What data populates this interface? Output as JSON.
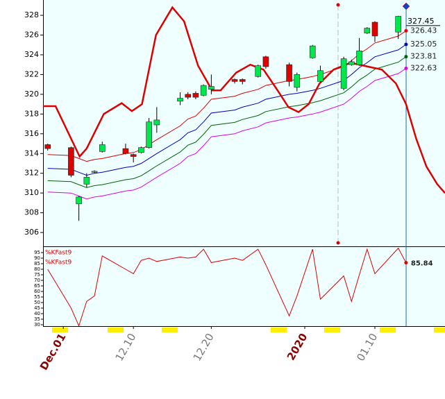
{
  "chart_data": [
    {
      "type": "candlestick",
      "x": [
        -2,
        1,
        2,
        3,
        4,
        5,
        8,
        9,
        10,
        11,
        12,
        15,
        16,
        17,
        18,
        19,
        22,
        23,
        25,
        26,
        29,
        30,
        32,
        33,
        36,
        37,
        38,
        39,
        40,
        43
      ],
      "open": [
        314.9,
        314.6,
        308.9,
        310.9,
        312.1,
        314.2,
        314.5,
        313.9,
        314.1,
        314.6,
        316.9,
        319.3,
        320.0,
        320.1,
        319.9,
        320.5,
        321.5,
        321.5,
        321.8,
        323.8,
        323.0,
        320.7,
        323.7,
        321.3,
        320.6,
        323.0,
        323.0,
        326.2,
        327.3,
        326.3
      ],
      "high": [
        315.0,
        314.7,
        309.7,
        312.0,
        312.3,
        315.2,
        315.0,
        314.0,
        314.7,
        317.6,
        318.7,
        320.2,
        320.2,
        320.3,
        321.0,
        322.0,
        321.6,
        321.6,
        323.0,
        323.9,
        323.2,
        322.2,
        325.0,
        322.9,
        323.8,
        323.5,
        325.7,
        326.8,
        327.4,
        327.95
      ],
      "low": [
        314.3,
        311.6,
        307.2,
        310.6,
        312.0,
        314.1,
        313.9,
        313.1,
        314.0,
        314.5,
        316.1,
        318.9,
        319.5,
        319.5,
        319.8,
        320.0,
        321.1,
        321.0,
        321.7,
        322.6,
        320.8,
        320.3,
        323.6,
        321.2,
        320.4,
        322.9,
        322.9,
        326.1,
        325.3,
        325.6
      ],
      "close": [
        314.5,
        311.8,
        309.6,
        311.6,
        312.2,
        314.9,
        314.0,
        313.7,
        314.6,
        317.2,
        317.4,
        319.6,
        319.7,
        319.7,
        320.9,
        320.8,
        321.3,
        321.3,
        322.9,
        322.8,
        321.3,
        322.0,
        324.9,
        322.4,
        323.6,
        323.3,
        324.4,
        326.7,
        325.9,
        327.9
      ],
      "up_color": "#00e64d",
      "down_color": "#e00000",
      "series": [
        {
          "color": "#e00000",
          "x": [
            -2,
            1,
            2,
            3,
            4,
            5,
            8,
            9,
            10,
            11,
            12,
            15,
            16,
            17,
            18,
            19,
            22,
            23,
            25,
            26,
            29,
            30,
            32,
            33,
            36,
            37,
            38,
            39,
            40,
            43,
            44
          ],
          "values": [
            313.9,
            313.8,
            313.5,
            313.2,
            313.4,
            313.5,
            314.0,
            314.1,
            314.4,
            314.9,
            315.4,
            316.8,
            317.5,
            317.8,
            318.6,
            319.5,
            319.8,
            320.1,
            320.5,
            320.9,
            321.4,
            321.5,
            321.8,
            322.0,
            322.8,
            323.4,
            324.1,
            324.6,
            325.2,
            325.9,
            326.43
          ]
        },
        {
          "color": "#0000c0",
          "x": [
            -2,
            1,
            2,
            3,
            4,
            5,
            8,
            9,
            10,
            11,
            12,
            15,
            16,
            17,
            18,
            19,
            22,
            23,
            25,
            26,
            29,
            30,
            32,
            33,
            36,
            37,
            38,
            39,
            40,
            43,
            44
          ],
          "values": [
            312.5,
            312.4,
            312.1,
            311.8,
            312.0,
            312.1,
            312.6,
            312.7,
            313.0,
            313.5,
            314.0,
            315.4,
            316.1,
            316.4,
            317.2,
            318.1,
            318.4,
            318.7,
            319.1,
            319.5,
            320.0,
            320.1,
            320.4,
            320.6,
            321.4,
            322.0,
            322.7,
            323.2,
            323.8,
            324.5,
            325.05
          ]
        },
        {
          "color": "#006400",
          "x": [
            -2,
            1,
            2,
            3,
            4,
            5,
            8,
            9,
            10,
            11,
            12,
            15,
            16,
            17,
            18,
            19,
            22,
            23,
            25,
            26,
            29,
            30,
            32,
            33,
            36,
            37,
            38,
            39,
            40,
            43,
            44
          ],
          "values": [
            311.25,
            311.15,
            310.85,
            310.55,
            310.75,
            310.85,
            311.35,
            311.45,
            311.75,
            312.25,
            312.75,
            314.15,
            314.85,
            315.15,
            315.95,
            316.85,
            317.15,
            317.45,
            317.85,
            318.25,
            318.75,
            318.85,
            319.15,
            319.35,
            320.15,
            320.75,
            321.45,
            321.95,
            322.55,
            323.25,
            323.81
          ]
        },
        {
          "color": "#e000e0",
          "x": [
            -2,
            1,
            2,
            3,
            4,
            5,
            8,
            9,
            10,
            11,
            12,
            15,
            16,
            17,
            18,
            19,
            22,
            23,
            25,
            26,
            29,
            30,
            32,
            33,
            36,
            37,
            38,
            39,
            40,
            43,
            44
          ],
          "values": [
            310.1,
            310.0,
            309.7,
            309.4,
            309.6,
            309.7,
            310.2,
            310.3,
            310.6,
            311.1,
            311.6,
            313.0,
            313.7,
            314.0,
            314.8,
            315.7,
            316.0,
            316.3,
            316.7,
            317.1,
            317.6,
            317.7,
            318.0,
            318.2,
            319.0,
            319.6,
            320.3,
            320.8,
            321.4,
            322.1,
            322.63
          ]
        },
        {
          "color": "#dd0000",
          "width": 2.5,
          "x": [
            -2.6,
            -1.0,
            2.1,
            3.0,
            5.2,
            7.5,
            8.8,
            10.1,
            11.9,
            14.0,
            15.5,
            17.3,
            19.1,
            20.2,
            22.2,
            24.0,
            25.7,
            27.5,
            28.9,
            30.2,
            31.5,
            32.9,
            34.7,
            36.9,
            39.1,
            40.9,
            42.7,
            44.0,
            45.3,
            46.6,
            48.0,
            49.0
          ],
          "values": [
            318.8,
            318.8,
            313.7,
            314.5,
            318.0,
            319.1,
            318.3,
            319.0,
            326.0,
            328.8,
            327.4,
            322.9,
            320.4,
            320.4,
            322.2,
            323.0,
            322.5,
            320.4,
            318.7,
            318.2,
            319.0,
            321.1,
            322.5,
            323.2,
            322.8,
            322.5,
            321.1,
            319.0,
            315.5,
            312.7,
            310.9,
            310.0
          ]
        }
      ],
      "last_price": 327.45,
      "xlim": [
        -2.6,
        49
      ],
      "xticks": [
        {
          "value": 0,
          "label": "Dec.01"
        },
        {
          "value": 9,
          "label": "12.10"
        },
        {
          "value": 19,
          "label": "12.20"
        },
        {
          "value": 31,
          "label": "2020"
        },
        {
          "value": 40,
          "label": "01.10"
        }
      ],
      "xtick_colors": [
        "#8b0000",
        "#777777",
        "#777777",
        "#8b0000",
        "#777777"
      ],
      "ylim": [
        304.6,
        329.55
      ],
      "yticks": [
        306,
        308,
        310,
        312,
        314,
        316,
        318,
        320,
        322,
        324,
        326,
        328
      ]
    },
    {
      "type": "line",
      "title": "%KFast9",
      "series": [
        {
          "name": "%KFast9",
          "color": "#dd0000",
          "x": [
            -2,
            1,
            2,
            3,
            4,
            5,
            8,
            9,
            10,
            11,
            12,
            15,
            16,
            17,
            18,
            19,
            22,
            23,
            25,
            26,
            29,
            30,
            32,
            33,
            36,
            37,
            38,
            39,
            40,
            43,
            44
          ],
          "values": [
            80,
            45,
            29,
            51,
            56,
            92,
            80,
            76,
            88,
            90,
            87,
            91,
            90,
            91,
            98,
            86,
            90,
            88,
            98,
            84,
            38,
            56,
            98,
            53,
            74,
            51,
            75,
            98,
            76,
            99,
            85.84
          ]
        }
      ],
      "xlim": [
        -2.6,
        49
      ],
      "ylim": [
        28.75,
        100
      ],
      "yticks": [
        30,
        35,
        40,
        45,
        50,
        55,
        60,
        65,
        70,
        75,
        80,
        85,
        90,
        95
      ]
    }
  ]
}
